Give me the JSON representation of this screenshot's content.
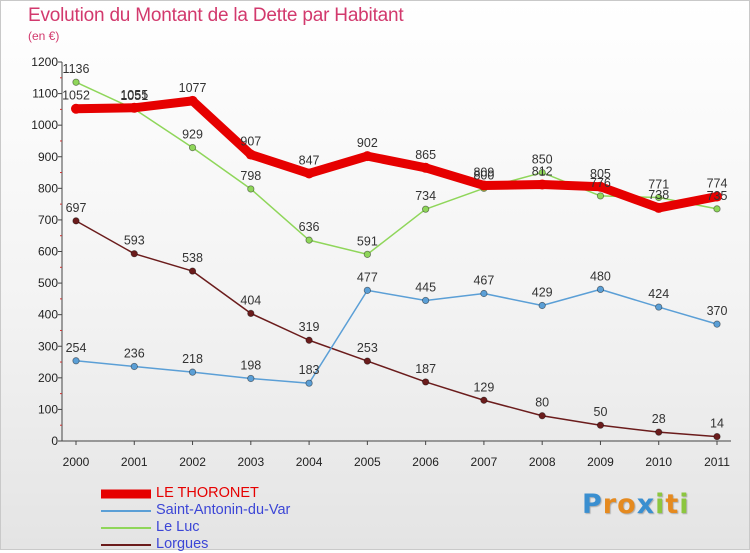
{
  "title": "Evolution du Montant de la Dette par Habitant",
  "unit_label": "(en €)",
  "logo": {
    "text": "Proxiti",
    "letters": [
      {
        "ch": "P",
        "color": "#3a8fd0"
      },
      {
        "ch": "r",
        "color": "#e58a1f"
      },
      {
        "ch": "o",
        "color": "#e58a1f"
      },
      {
        "ch": "x",
        "color": "#3a8fd0"
      },
      {
        "ch": "i",
        "color": "#8cc63f"
      },
      {
        "ch": "t",
        "color": "#e58a1f"
      },
      {
        "ch": "i",
        "color": "#8cc63f"
      }
    ]
  },
  "chart_data": {
    "type": "line",
    "title": "Evolution du Montant de la Dette par Habitant",
    "subtitle": "(en €)",
    "xlabel": "",
    "ylabel": "",
    "ylim": [
      0,
      1200
    ],
    "yticks": [
      0,
      100,
      200,
      300,
      400,
      500,
      600,
      700,
      800,
      900,
      1000,
      1100,
      1200
    ],
    "grid": false,
    "legend_position": "bottom-left",
    "categories": [
      "2000",
      "2001",
      "2002",
      "2003",
      "2004",
      "2005",
      "2006",
      "2007",
      "2008",
      "2009",
      "2010",
      "2011"
    ],
    "series": [
      {
        "name": "Lorgues",
        "color": "#6b1c1c",
        "values": [
          697,
          593,
          538,
          404,
          319,
          253,
          187,
          129,
          80,
          50,
          28,
          14
        ]
      },
      {
        "name": "Saint-Antonin-du-Var",
        "color": "#5b9fd6",
        "values": [
          254,
          236,
          218,
          198,
          183,
          477,
          445,
          467,
          429,
          480,
          424,
          370
        ]
      },
      {
        "name": "Le Luc",
        "color": "#8fd65a",
        "values": [
          1136,
          1051,
          929,
          798,
          636,
          591,
          734,
          800,
          850,
          776,
          771,
          735
        ]
      },
      {
        "name": "LE THORONET",
        "color": "#e60000",
        "values": [
          1052,
          1055,
          1077,
          907,
          847,
          902,
          865,
          809,
          812,
          805,
          738,
          774
        ]
      }
    ],
    "legend_order": [
      "LE THORONET",
      "Saint-Antonin-du-Var",
      "Le Luc",
      "Lorgues"
    ]
  }
}
